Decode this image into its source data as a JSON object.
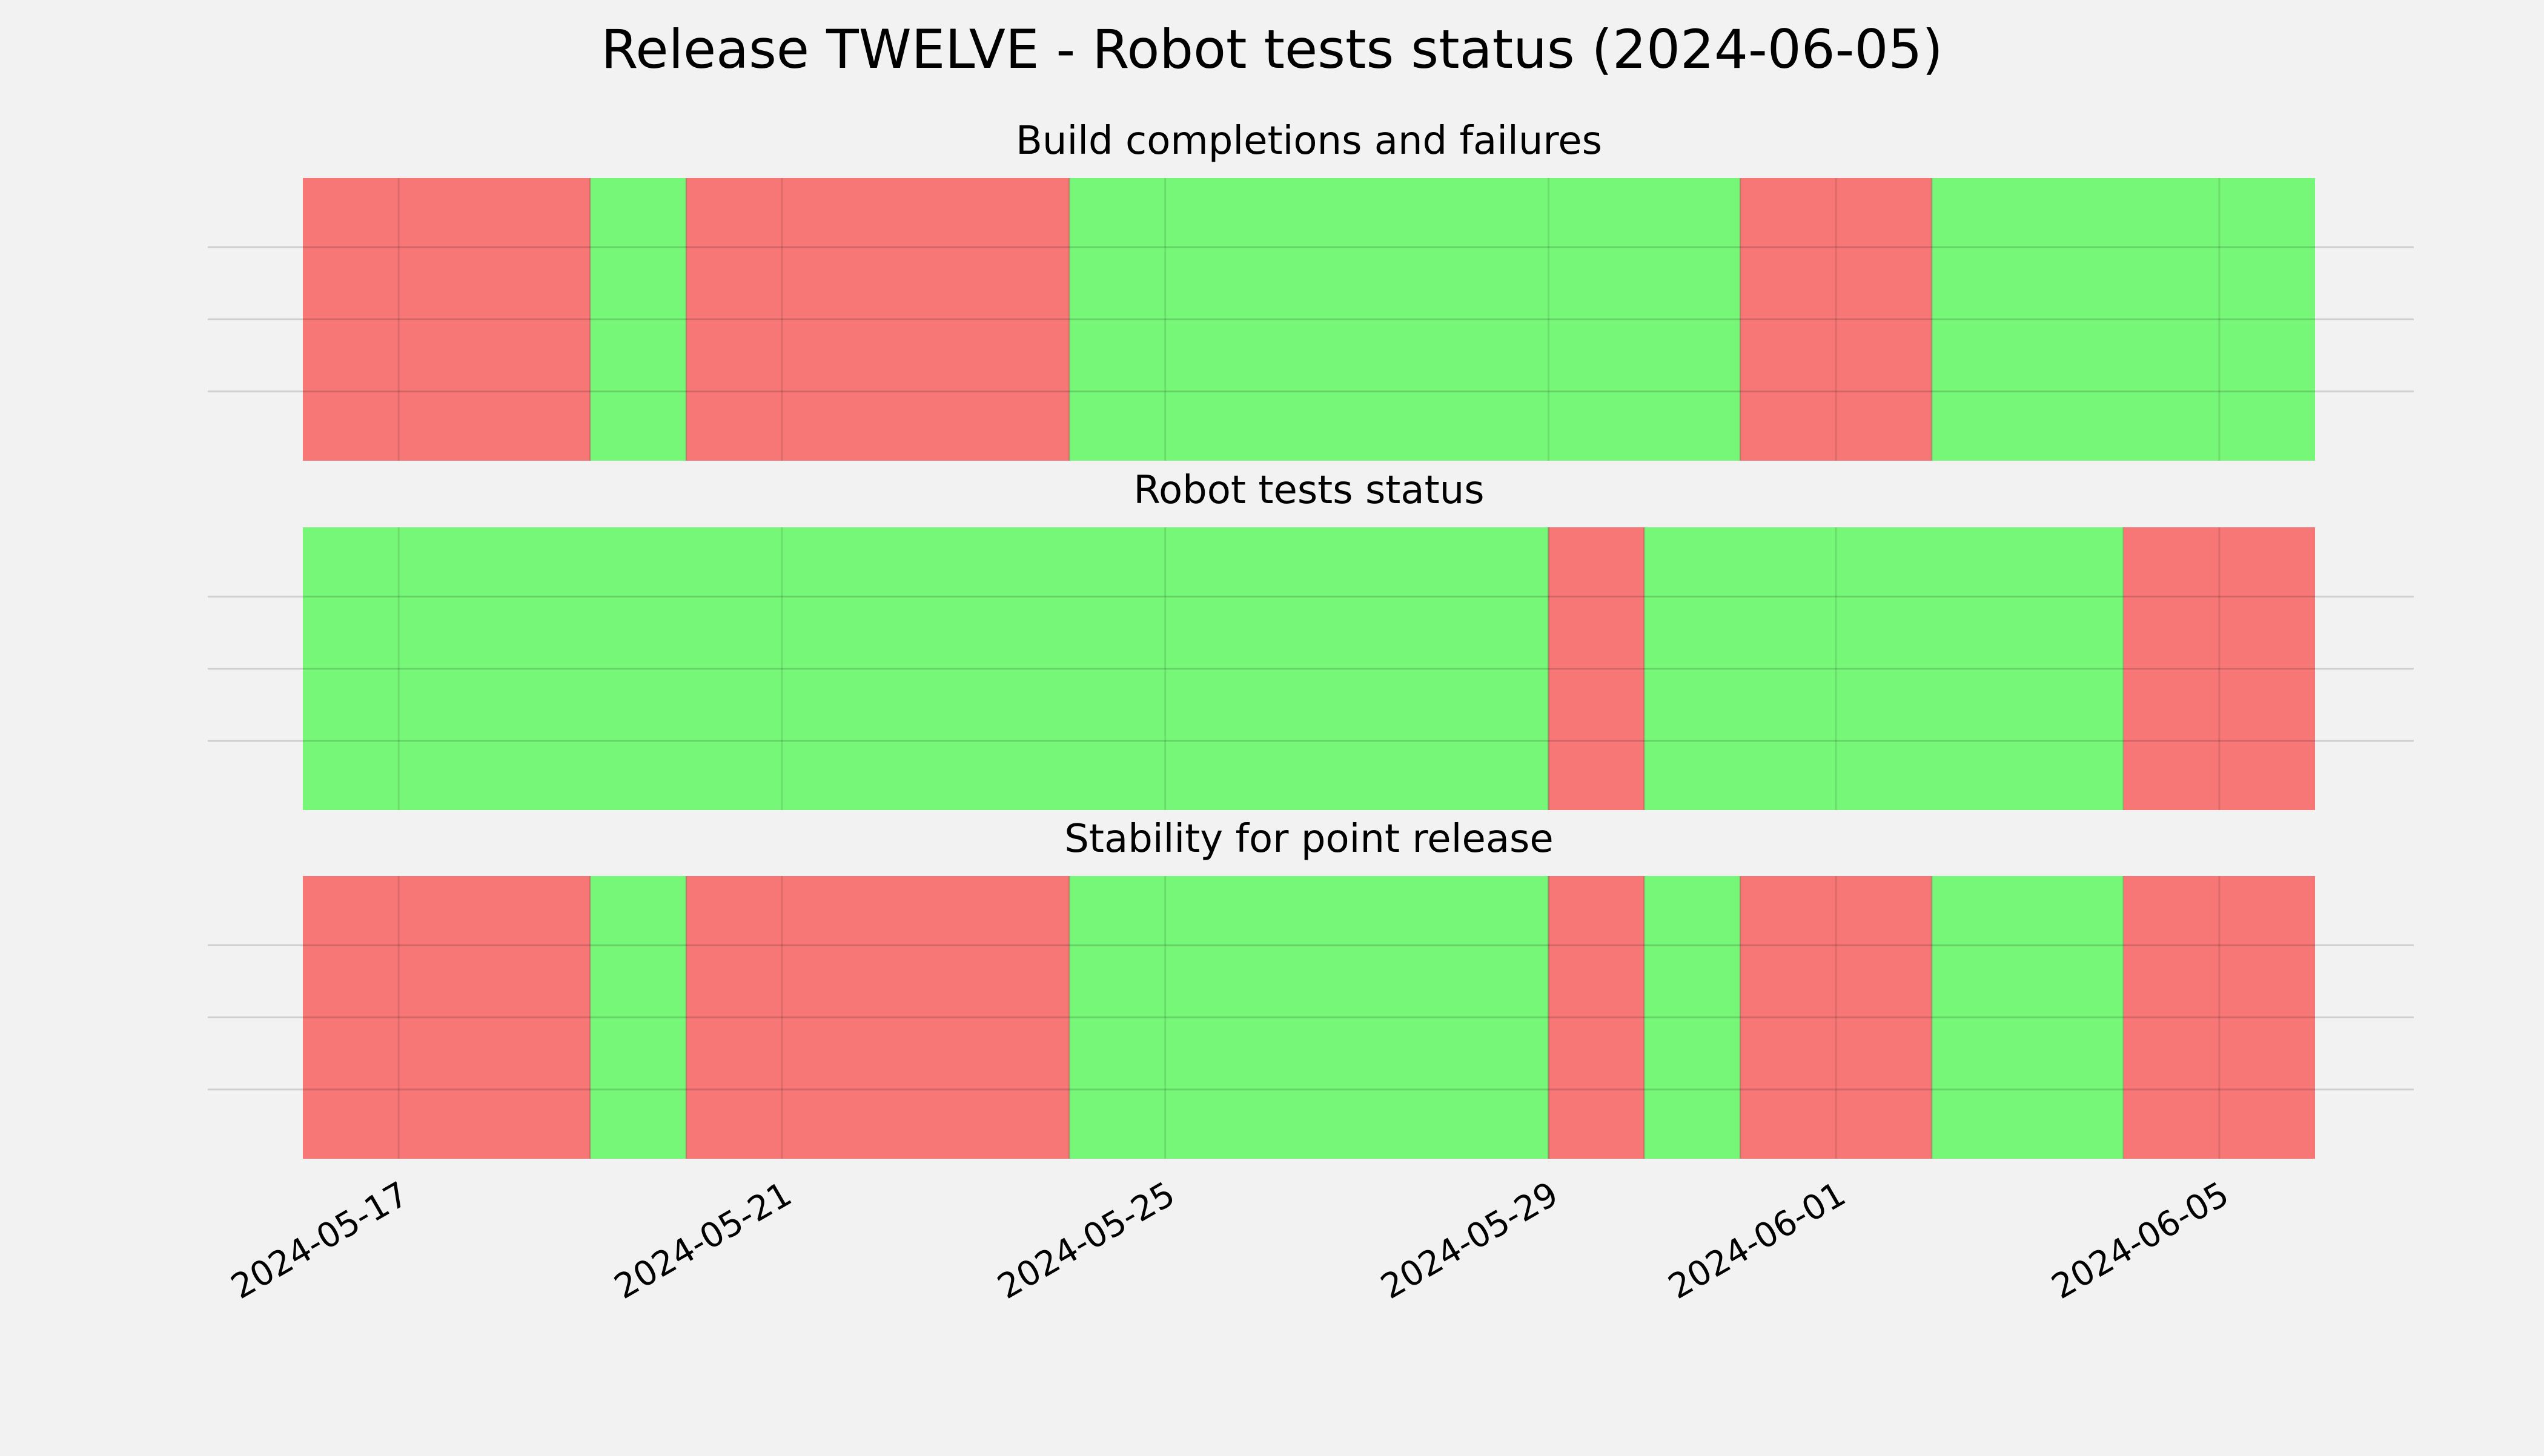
{
  "chart_data": {
    "type": "timeline",
    "title": "Release TWELVE - Robot tests status (2024-06-05)",
    "x_range": [
      "2024-05-16",
      "2024-06-06"
    ],
    "x_ticks": [
      "2024-05-17",
      "2024-05-21",
      "2024-05-25",
      "2024-05-29",
      "2024-06-01",
      "2024-06-05"
    ],
    "grid": true,
    "colors": {
      "pass": "#77f777",
      "fail": "#f77777",
      "background": "#f2f2f2"
    },
    "panels": [
      {
        "title": "Build completions and failures",
        "segments": [
          {
            "start": "2024-05-16",
            "end": "2024-05-19",
            "status": "fail"
          },
          {
            "start": "2024-05-19",
            "end": "2024-05-20",
            "status": "pass"
          },
          {
            "start": "2024-05-20",
            "end": "2024-05-24",
            "status": "fail"
          },
          {
            "start": "2024-05-24",
            "end": "2024-05-31",
            "status": "pass"
          },
          {
            "start": "2024-05-31",
            "end": "2024-06-02",
            "status": "fail"
          },
          {
            "start": "2024-06-02",
            "end": "2024-06-06",
            "status": "pass"
          }
        ]
      },
      {
        "title": "Robot tests status",
        "segments": [
          {
            "start": "2024-05-16",
            "end": "2024-05-29",
            "status": "pass"
          },
          {
            "start": "2024-05-29",
            "end": "2024-05-30",
            "status": "fail"
          },
          {
            "start": "2024-05-30",
            "end": "2024-06-04",
            "status": "pass"
          },
          {
            "start": "2024-06-04",
            "end": "2024-06-06",
            "status": "fail"
          }
        ]
      },
      {
        "title": "Stability for point release",
        "segments": [
          {
            "start": "2024-05-16",
            "end": "2024-05-19",
            "status": "fail"
          },
          {
            "start": "2024-05-19",
            "end": "2024-05-20",
            "status": "pass"
          },
          {
            "start": "2024-05-20",
            "end": "2024-05-24",
            "status": "fail"
          },
          {
            "start": "2024-05-24",
            "end": "2024-05-29",
            "status": "pass"
          },
          {
            "start": "2024-05-29",
            "end": "2024-05-30",
            "status": "fail"
          },
          {
            "start": "2024-05-30",
            "end": "2024-05-31",
            "status": "pass"
          },
          {
            "start": "2024-05-31",
            "end": "2024-06-02",
            "status": "fail"
          },
          {
            "start": "2024-06-02",
            "end": "2024-06-04",
            "status": "pass"
          },
          {
            "start": "2024-06-04",
            "end": "2024-06-06",
            "status": "fail"
          }
        ]
      }
    ]
  }
}
